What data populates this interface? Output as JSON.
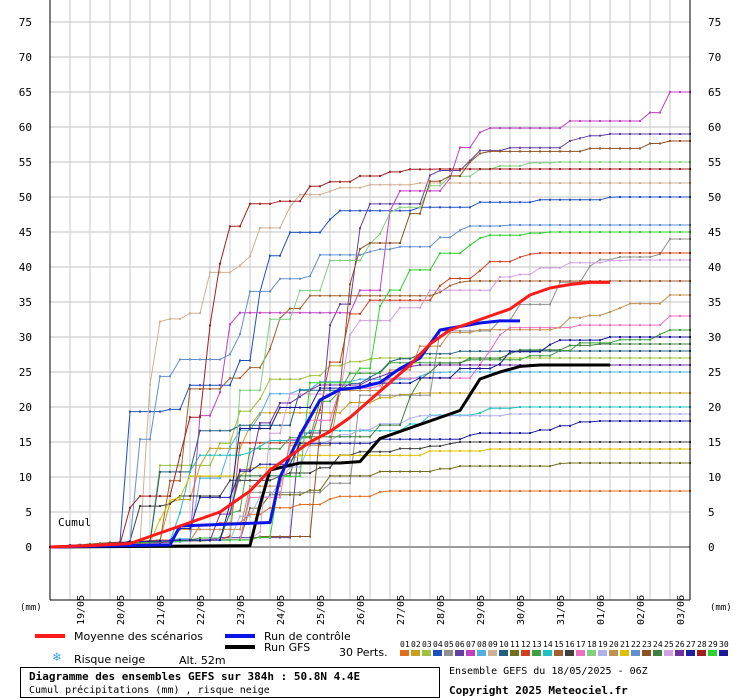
{
  "chart_data": {
    "type": "line",
    "title": "Diagramme des ensembles GEFS sur 384h : 50.8N 4.4E",
    "subtitle": "Cumul précipitations (mm) , risque neige",
    "ylabel_left": "(mm)",
    "ylabel_right": "(mm)",
    "series_label": "Cumul",
    "ylim": [
      0,
      75
    ],
    "yticks": [
      0,
      5,
      10,
      15,
      20,
      25,
      30,
      35,
      40,
      45,
      50,
      55,
      60,
      65,
      70,
      75
    ],
    "x_dates": [
      "19/05",
      "20/05",
      "21/05",
      "22/05",
      "23/05",
      "24/05",
      "25/05",
      "26/05",
      "27/05",
      "28/05",
      "29/05",
      "30/05",
      "31/05",
      "01/06",
      "02/06",
      "03/06"
    ],
    "x_start": "18/05 06Z",
    "x_hours": 384,
    "grid": true,
    "series": [
      {
        "name": "Moyenne des scénarios",
        "color": "#ff1a1a",
        "width": 3,
        "points": [
          [
            0,
            0
          ],
          [
            24,
            0.2
          ],
          [
            48,
            0.5
          ],
          [
            66,
            2
          ],
          [
            84,
            3.5
          ],
          [
            102,
            5
          ],
          [
            120,
            8
          ],
          [
            132,
            11
          ],
          [
            144,
            13
          ],
          [
            156,
            15
          ],
          [
            168,
            16.5
          ],
          [
            180,
            18.5
          ],
          [
            192,
            21
          ],
          [
            204,
            23.5
          ],
          [
            216,
            26
          ],
          [
            228,
            29
          ],
          [
            240,
            31
          ],
          [
            252,
            32
          ],
          [
            264,
            33
          ],
          [
            276,
            34
          ],
          [
            288,
            36
          ],
          [
            300,
            37
          ],
          [
            312,
            37.5
          ],
          [
            324,
            37.8
          ],
          [
            336,
            37.8
          ]
        ]
      },
      {
        "name": "Run de contrôle",
        "color": "#0a14e6",
        "width": 3,
        "points": [
          [
            0,
            0
          ],
          [
            72,
            0.3
          ],
          [
            78,
            3
          ],
          [
            132,
            3.5
          ],
          [
            138,
            10
          ],
          [
            150,
            16
          ],
          [
            162,
            21
          ],
          [
            174,
            22.5
          ],
          [
            186,
            22.8
          ],
          [
            198,
            23.5
          ],
          [
            210,
            25.5
          ],
          [
            222,
            27
          ],
          [
            234,
            31
          ],
          [
            246,
            31.5
          ],
          [
            258,
            32
          ],
          [
            270,
            32.3
          ],
          [
            282,
            32.3
          ]
        ]
      },
      {
        "name": "Run GFS",
        "color": "#000000",
        "width": 3,
        "points": [
          [
            0,
            0
          ],
          [
            120,
            0.2
          ],
          [
            126,
            6
          ],
          [
            132,
            11
          ],
          [
            150,
            12
          ],
          [
            174,
            12
          ],
          [
            186,
            12.2
          ],
          [
            198,
            15.5
          ],
          [
            210,
            16.5
          ],
          [
            222,
            17.5
          ],
          [
            234,
            18.5
          ],
          [
            246,
            19.5
          ],
          [
            258,
            24
          ],
          [
            270,
            25
          ],
          [
            282,
            25.8
          ],
          [
            294,
            26
          ],
          [
            306,
            26
          ],
          [
            318,
            26
          ],
          [
            330,
            26
          ],
          [
            336,
            26
          ]
        ]
      }
    ],
    "perturbations": {
      "count": 30,
      "colors": [
        "#e07020",
        "#c8a020",
        "#a0c040",
        "#2050c0",
        "#909090",
        "#6040a0",
        "#c040c0",
        "#50b0e0",
        "#d0b090",
        "#206080",
        "#707020",
        "#d04020",
        "#40a040",
        "#20c0c0",
        "#a06030",
        "#404040",
        "#f070c0",
        "#80d080",
        "#b0b0f0",
        "#c09050",
        "#e0c000",
        "#6090d0",
        "#905020",
        "#408040",
        "#d0a0e0",
        "#7030a0",
        "#2020a0",
        "#a02020",
        "#30d030",
        "#1a1a9a"
      ],
      "finals": [
        8,
        22,
        27,
        50,
        44,
        59,
        65,
        25,
        52,
        28,
        12,
        42,
        31,
        20,
        38,
        15,
        33,
        55,
        19,
        36,
        14,
        46,
        58,
        29,
        41,
        26,
        18,
        54,
        45,
        30
      ]
    }
  },
  "legend": {
    "mean": "Moyenne des scénarios",
    "control": "Run de contrôle",
    "gfs": "Run GFS",
    "perts": "30 Perts.",
    "snow": "Risque neige",
    "alt": "Alt. 52m",
    "pert_numbers": [
      "01",
      "02",
      "03",
      "04",
      "05",
      "06",
      "07",
      "08",
      "09",
      "10",
      "11",
      "12",
      "13",
      "14",
      "15",
      "16",
      "17",
      "18",
      "19",
      "20",
      "21",
      "22",
      "23",
      "24",
      "25",
      "26",
      "27",
      "28",
      "29",
      "30"
    ]
  },
  "footer": {
    "title": "Diagramme des ensembles GEFS sur 384h : 50.8N 4.4E",
    "subtitle": "Cumul précipitations (mm) , risque neige",
    "run": "Ensemble GEFS du 18/05/2025 - 06Z",
    "copyright": "Copyright 2025 Meteociel.fr"
  }
}
